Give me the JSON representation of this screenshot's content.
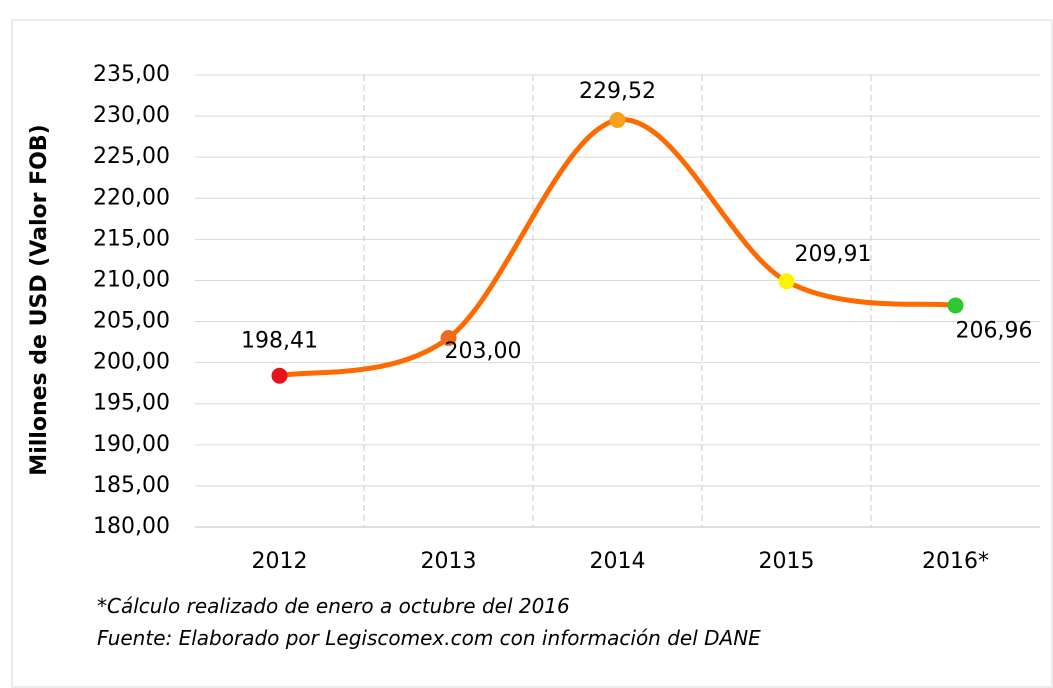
{
  "chart_data": {
    "type": "line",
    "y_axis_label": "Millones de USD (Valor FOB)",
    "categories": [
      "2012",
      "2013",
      "2014",
      "2015",
      "2016*"
    ],
    "values": [
      198.41,
      203.0,
      229.52,
      209.91,
      206.96
    ],
    "value_labels": [
      "198,41",
      "203,00",
      "229,52",
      "209,91",
      "206,96"
    ],
    "color": "#ff6a00",
    "point_colors": [
      "#e8141a",
      "#f26b1d",
      "#f7a21b",
      "#fff200",
      "#2dc82d"
    ],
    "smooth": true,
    "ylim": [
      180,
      235
    ],
    "yticks": [
      {
        "value": 180,
        "label": "180,00"
      },
      {
        "value": 185,
        "label": "185,00"
      },
      {
        "value": 190,
        "label": "190,00"
      },
      {
        "value": 195,
        "label": "195,00"
      },
      {
        "value": 200,
        "label": "200,00"
      },
      {
        "value": 205,
        "label": "205,00"
      },
      {
        "value": 210,
        "label": "210,00"
      },
      {
        "value": 215,
        "label": "215,00"
      },
      {
        "value": 220,
        "label": "220,00"
      },
      {
        "value": 225,
        "label": "225,00"
      },
      {
        "value": 230,
        "label": "230,00"
      },
      {
        "value": 235,
        "label": "235,00"
      }
    ],
    "grid": true,
    "notes": [
      "*Cálculo realizado de enero a octubre del 2016",
      "Fuente: Elaborado por Legiscomex.com con información del DANE"
    ]
  }
}
